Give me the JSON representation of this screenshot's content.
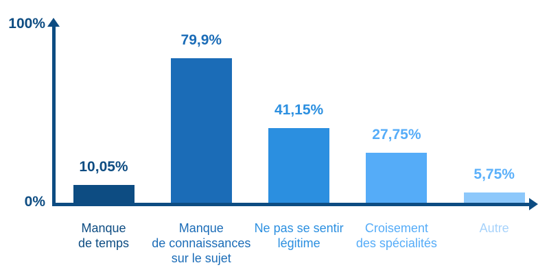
{
  "chart_data": {
    "type": "bar",
    "title": "",
    "categories": [
      "Manque de temps",
      "Manque de connaissances sur le sujet",
      "Ne pas se sentir légitime",
      "Croisement des spécialités",
      "Autre"
    ],
    "values": [
      10.05,
      79.9,
      41.15,
      27.75,
      5.75
    ],
    "ylim": [
      0,
      100
    ],
    "grid": false,
    "legend": false,
    "xlabel": "",
    "ylabel": "",
    "yaxis": {
      "top_label": "100%",
      "bottom_label": "0%",
      "label_color": "#0d4c82"
    },
    "axis_color": "#0d4c82",
    "bars": [
      {
        "category_lines": [
          "Manque",
          "de temps"
        ],
        "value": 10.05,
        "value_label": "10,05%",
        "bar_color": "#0d4c82",
        "value_color": "#0d4c82",
        "label_color": "#0d4c82"
      },
      {
        "category_lines": [
          "Manque",
          "de connaissances",
          "sur le sujet"
        ],
        "value": 79.9,
        "value_label": "79,9%",
        "bar_color": "#1b6cb7",
        "value_color": "#1b6cb7",
        "label_color": "#1b6cb7"
      },
      {
        "category_lines": [
          "Ne pas se sentir",
          "légitime"
        ],
        "value": 41.15,
        "value_label": "41,15%",
        "bar_color": "#2b8fe0",
        "value_color": "#2b8fe0",
        "label_color": "#2b8fe0"
      },
      {
        "category_lines": [
          "Croisement",
          "des spécialités"
        ],
        "value": 27.75,
        "value_label": "27,75%",
        "bar_color": "#55acf8",
        "value_color": "#55acf8",
        "label_color": "#55acf8"
      },
      {
        "category_lines": [
          "Autre"
        ],
        "value": 5.75,
        "value_label": "5,75%",
        "bar_color": "#8dc8fb",
        "value_color": "#5bb0fa",
        "label_color": "#a6d2fb"
      }
    ]
  }
}
